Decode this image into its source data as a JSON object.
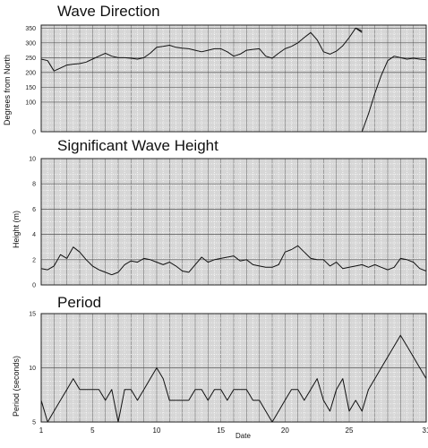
{
  "chart_data": [
    {
      "type": "line",
      "title": "Wave Direction",
      "ylabel": "Degrees from North",
      "ylim": [
        0,
        360
      ],
      "yticks": [
        0,
        100,
        150,
        200,
        250,
        300,
        350
      ],
      "ytick_labels": [
        "0",
        "100",
        "150",
        "200",
        "250",
        "300",
        "350"
      ],
      "xlim": [
        1,
        31
      ],
      "x": [
        1,
        1.5,
        2,
        2.5,
        3,
        3.5,
        4,
        4.5,
        5,
        5.5,
        6,
        6.5,
        7,
        7.5,
        8,
        8.5,
        9,
        9.5,
        10,
        10.5,
        11,
        11.5,
        12,
        12.5,
        13,
        13.5,
        14,
        14.5,
        15,
        15.5,
        16,
        16.5,
        17,
        17.5,
        18,
        18.5,
        19,
        19.5,
        20,
        20.5,
        21,
        21.5,
        22,
        22.5,
        23,
        23.5,
        24,
        24.5,
        25,
        25.5,
        26
      ],
      "values": [
        245,
        240,
        205,
        215,
        225,
        228,
        230,
        235,
        245,
        255,
        265,
        255,
        250,
        250,
        248,
        245,
        250,
        265,
        285,
        288,
        292,
        285,
        282,
        280,
        275,
        270,
        275,
        280,
        280,
        270,
        255,
        262,
        275,
        278,
        280,
        255,
        248,
        265,
        280,
        288,
        300,
        318,
        335,
        310,
        270,
        262,
        272,
        290,
        318,
        350,
        340
      ],
      "segments": [
        {
          "x": [
            25.5,
            26
          ],
          "values": [
            350,
            335
          ]
        },
        {
          "x": [
            26,
            26.5,
            27,
            27.5,
            28,
            28.5,
            29,
            29.5,
            30,
            30.5,
            31
          ],
          "values": [
            0,
            60,
            130,
            190,
            240,
            255,
            250,
            245,
            248,
            245,
            243
          ]
        }
      ]
    },
    {
      "type": "line",
      "title": "Significant Wave Height",
      "ylabel": "Height (m)",
      "ylim": [
        0,
        10
      ],
      "yticks": [
        0,
        2,
        4,
        6,
        8,
        10
      ],
      "ytick_labels": [
        "0",
        "2",
        "4",
        "6",
        "8",
        "10"
      ],
      "xlim": [
        1,
        31
      ],
      "x": [
        1,
        1.5,
        2,
        2.5,
        3,
        3.5,
        4,
        4.5,
        5,
        5.5,
        6,
        6.5,
        7,
        7.5,
        8,
        8.5,
        9,
        9.5,
        10,
        10.5,
        11,
        11.5,
        12,
        12.5,
        13,
        13.5,
        14,
        14.5,
        15,
        15.5,
        16,
        16.5,
        17,
        17.5,
        18,
        18.5,
        19,
        19.5,
        20,
        20.5,
        21,
        21.5,
        22,
        22.5,
        23,
        23.5,
        24,
        24.5,
        25,
        25.5,
        26,
        26.5,
        27,
        27.5,
        28,
        28.5,
        29,
        29.5,
        30,
        30.5,
        31
      ],
      "values": [
        1.3,
        1.2,
        1.5,
        2.4,
        2.1,
        3.0,
        2.6,
        2.0,
        1.5,
        1.2,
        1.0,
        0.8,
        1.0,
        1.6,
        1.9,
        1.8,
        2.1,
        2.0,
        1.8,
        1.6,
        1.8,
        1.5,
        1.1,
        1.0,
        1.6,
        2.2,
        1.8,
        2.0,
        2.1,
        2.2,
        2.3,
        1.9,
        2.0,
        1.6,
        1.5,
        1.4,
        1.4,
        1.6,
        2.6,
        2.8,
        3.1,
        2.6,
        2.1,
        2.0,
        2.0,
        1.5,
        1.8,
        1.3,
        1.4,
        1.5,
        1.6,
        1.4,
        1.6,
        1.4,
        1.2,
        1.4,
        2.1,
        2.0,
        1.8,
        1.3,
        1.1
      ]
    },
    {
      "type": "line",
      "title": "Period",
      "ylabel": "Period (seconds)",
      "ylim": [
        5,
        15
      ],
      "yticks": [
        5,
        10,
        15
      ],
      "ytick_labels": [
        "5",
        "10",
        "15"
      ],
      "xlim": [
        1,
        31
      ],
      "x": [
        1,
        1.5,
        2,
        2.5,
        3,
        3.5,
        4,
        4.5,
        5,
        5.5,
        6,
        6.5,
        7,
        7.5,
        8,
        8.5,
        9,
        9.5,
        10,
        10.5,
        11,
        11.5,
        12,
        12.5,
        13,
        13.5,
        14,
        14.5,
        15,
        15.5,
        16,
        16.5,
        17,
        17.5,
        18,
        18.5,
        19,
        19.5,
        20,
        20.5,
        21,
        21.5,
        22,
        22.5,
        23,
        23.5,
        24,
        24.5,
        25,
        25.5,
        26,
        26.5,
        27,
        27.5,
        28,
        28.5,
        29,
        29.5,
        30,
        30.5,
        31
      ],
      "values": [
        7,
        5,
        6,
        7,
        8,
        9,
        8,
        8,
        8,
        8,
        7,
        8,
        5,
        8,
        8,
        7,
        8,
        9,
        10,
        9,
        7,
        7,
        7,
        7,
        8,
        8,
        7,
        8,
        8,
        7,
        8,
        8,
        8,
        7,
        7,
        6,
        5,
        6,
        7,
        8,
        8,
        7,
        8,
        9,
        7,
        6,
        8,
        9,
        6,
        7,
        6,
        8,
        9,
        10,
        11,
        12,
        13,
        12,
        11,
        10,
        9
      ],
      "xticks": [
        1,
        5,
        10,
        15,
        20,
        25,
        31
      ],
      "xtick_labels": [
        "1",
        "5",
        "10",
        "15",
        "20",
        "25",
        "31"
      ],
      "xlabel": "Date"
    }
  ]
}
